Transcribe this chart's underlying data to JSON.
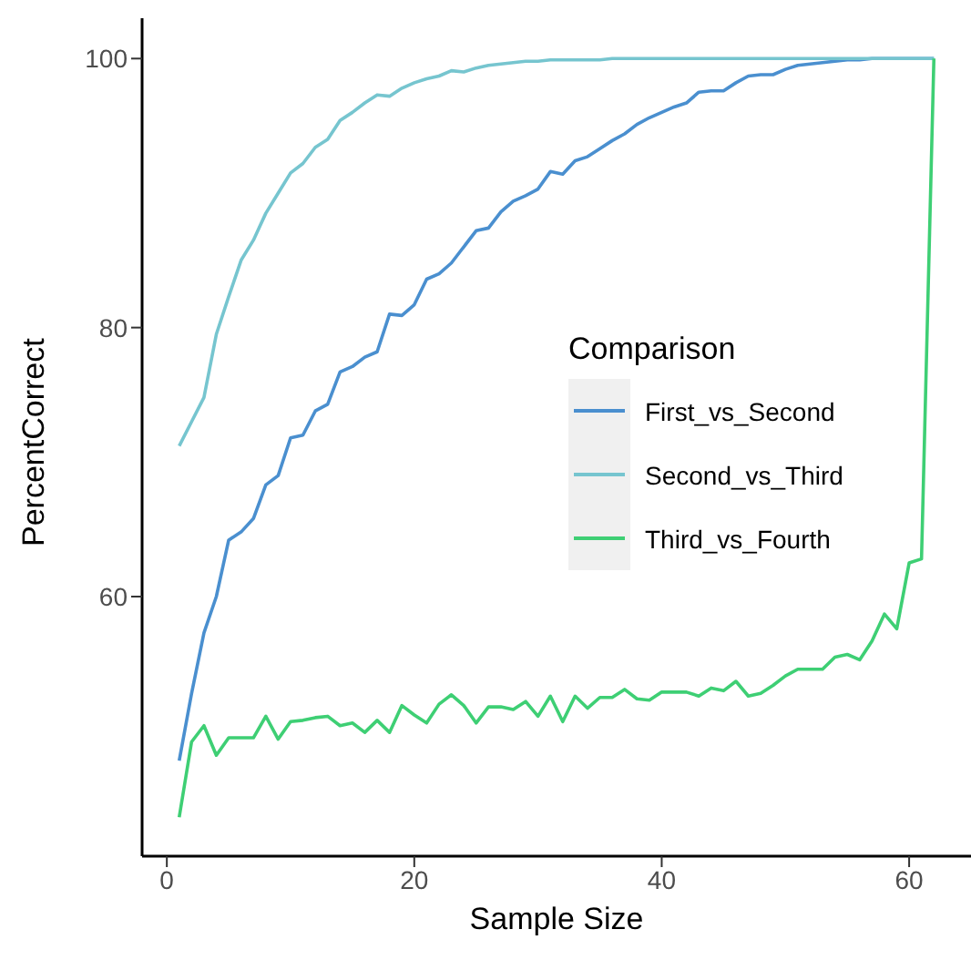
{
  "chart_data": {
    "type": "line",
    "xlabel": "Sample Size",
    "ylabel": "PercentCorrect",
    "legend_title": "Comparison",
    "legend": "right",
    "grid": false,
    "marker": "none",
    "line_style": "solid",
    "x": [
      1,
      2,
      3,
      4,
      5,
      6,
      7,
      8,
      9,
      10,
      11,
      12,
      13,
      14,
      15,
      16,
      17,
      18,
      19,
      20,
      21,
      22,
      23,
      24,
      25,
      26,
      27,
      28,
      29,
      30,
      31,
      32,
      33,
      34,
      35,
      36,
      37,
      38,
      39,
      40,
      41,
      42,
      43,
      44,
      45,
      46,
      47,
      48,
      49,
      50,
      51,
      52,
      53,
      54,
      55,
      56,
      57,
      58,
      59,
      60,
      61,
      62
    ],
    "xlim": [
      -2,
      65
    ],
    "xticks": [
      0,
      20,
      40,
      60
    ],
    "ylim": [
      40.7,
      103
    ],
    "yticks": [
      60,
      80,
      100
    ],
    "series": [
      {
        "name": "First_vs_Second",
        "color": "#4a8fcf",
        "values": [
          47.8,
          52.8,
          57.3,
          60,
          64.2,
          64.8,
          65.8,
          68.3,
          69,
          71.8,
          72,
          73.8,
          74.3,
          76.7,
          77.1,
          77.8,
          78.2,
          81,
          80.9,
          81.7,
          83.6,
          84,
          84.8,
          86,
          87.2,
          87.4,
          88.6,
          89.4,
          89.8,
          90.3,
          91.6,
          91.4,
          92.4,
          92.7,
          93.3,
          93.9,
          94.4,
          95.1,
          95.6,
          96,
          96.4,
          96.7,
          97.5,
          97.6,
          97.6,
          98.2,
          98.7,
          98.8,
          98.8,
          99.2,
          99.5,
          99.6,
          99.7,
          99.8,
          99.9,
          99.9,
          100,
          100,
          100,
          100,
          100,
          100
        ]
      },
      {
        "name": "Second_vs_Third",
        "color": "#76c5cf",
        "values": [
          71.2,
          73,
          74.8,
          79.5,
          82.3,
          85,
          86.5,
          88.5,
          90,
          91.5,
          92.2,
          93.4,
          94,
          95.4,
          96,
          96.7,
          97.3,
          97.2,
          97.8,
          98.2,
          98.5,
          98.7,
          99.1,
          99,
          99.3,
          99.5,
          99.6,
          99.7,
          99.8,
          99.8,
          99.9,
          99.9,
          99.9,
          99.9,
          99.9,
          100,
          100,
          100,
          100,
          100,
          100,
          100,
          100,
          100,
          100,
          100,
          100,
          100,
          100,
          100,
          100,
          100,
          100,
          100,
          100,
          100,
          100,
          100,
          100,
          100,
          100,
          100
        ]
      },
      {
        "name": "Third_vs_Fourth",
        "color": "#3ecf74",
        "values": [
          43.6,
          49.2,
          50.4,
          48.2,
          49.5,
          49.5,
          49.5,
          51.1,
          49.4,
          50.7,
          50.8,
          51,
          51.1,
          50.4,
          50.6,
          49.9,
          50.8,
          49.9,
          51.9,
          51.2,
          50.6,
          52,
          52.7,
          51.9,
          50.6,
          51.8,
          51.8,
          51.6,
          52.2,
          51.1,
          52.6,
          50.7,
          52.6,
          51.7,
          52.5,
          52.5,
          53.1,
          52.4,
          52.3,
          52.9,
          52.9,
          52.9,
          52.6,
          53.2,
          53,
          53.7,
          52.6,
          52.8,
          53.4,
          54.1,
          54.6,
          54.6,
          54.6,
          55.5,
          55.7,
          55.3,
          56.7,
          58.7,
          57.6,
          62.5,
          62.8,
          100
        ]
      }
    ]
  }
}
